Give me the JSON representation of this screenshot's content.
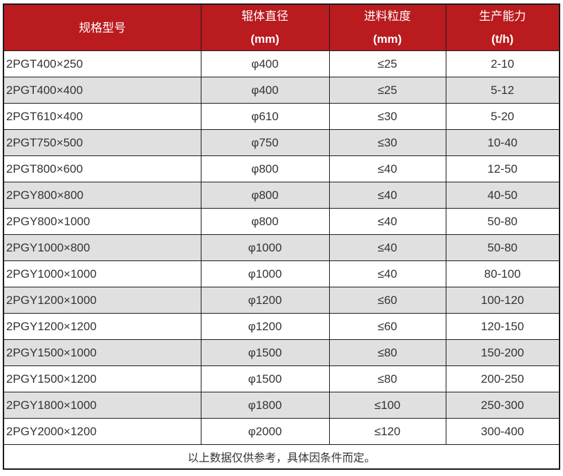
{
  "table": {
    "columns": [
      {
        "label": "规格型号",
        "sub": ""
      },
      {
        "label": "辊体直径",
        "sub": "(mm)"
      },
      {
        "label": "进料粒度",
        "sub": "(mm)"
      },
      {
        "label": "生产能力",
        "sub": "(t/h)"
      }
    ],
    "rows": [
      [
        "2PGT400×250",
        "φ400",
        "≤25",
        "2-10"
      ],
      [
        "2PGT400×400",
        "φ400",
        "≤25",
        "5-12"
      ],
      [
        "2PGT610×400",
        "φ610",
        "≤30",
        "5-20"
      ],
      [
        "2PGT750×500",
        "φ750",
        "≤30",
        "10-40"
      ],
      [
        "2PGT800×600",
        "φ800",
        "≤40",
        "12-50"
      ],
      [
        "2PGY800×800",
        "φ800",
        "≤40",
        "40-50"
      ],
      [
        "2PGY800×1000",
        "φ800",
        "≤40",
        "50-80"
      ],
      [
        "2PGY1000×800",
        "φ1000",
        "≤40",
        "50-80"
      ],
      [
        "2PGY1000×1000",
        "φ1000",
        "≤40",
        "80-100"
      ],
      [
        "2PGY1200×1000",
        "φ1200",
        "≤60",
        "100-120"
      ],
      [
        "2PGY1200×1200",
        "φ1200",
        "≤60",
        "120-150"
      ],
      [
        "2PGY1500×1000",
        "φ1500",
        "≤80",
        "150-200"
      ],
      [
        "2PGY1500×1200",
        "φ1500",
        "≤80",
        "200-250"
      ],
      [
        "2PGY1800×1000",
        "φ1800",
        "≤100",
        "250-300"
      ],
      [
        "2PGY2000×1200",
        "φ2000",
        "≤120",
        "300-400"
      ]
    ],
    "footer": "以上数据仅供参考，具体因条件而定。",
    "colors": {
      "header_bg": "#ba1b1f",
      "header_text": "#ffffff",
      "row_alt_bg": "#e0e0e0",
      "border": "#1a1a1a",
      "body_text": "#333333"
    }
  }
}
